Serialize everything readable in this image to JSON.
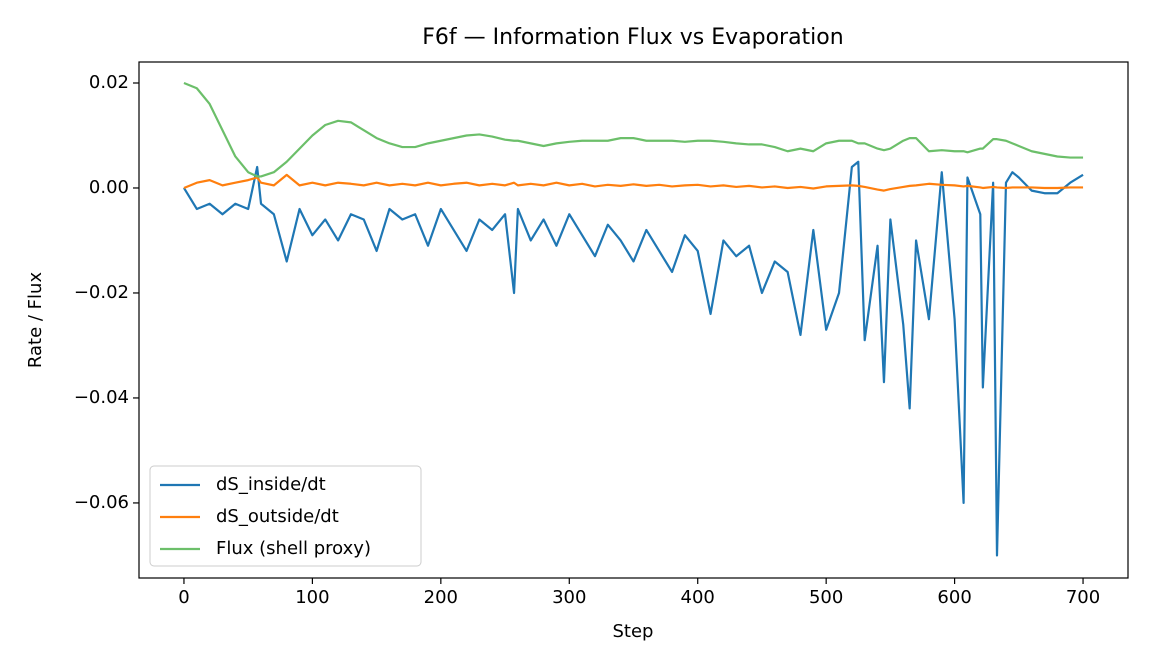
{
  "chart_data": {
    "type": "line",
    "title": "F6f — Information Flux vs Evaporation",
    "x_label": "Step",
    "y_label": "Rate / Flux",
    "x": [
      0,
      10,
      20,
      30,
      40,
      50,
      57,
      60,
      70,
      80,
      90,
      100,
      110,
      120,
      130,
      140,
      150,
      160,
      170,
      180,
      190,
      200,
      210,
      220,
      230,
      240,
      250,
      257,
      260,
      270,
      280,
      290,
      300,
      310,
      320,
      330,
      340,
      350,
      360,
      370,
      380,
      390,
      400,
      410,
      420,
      430,
      440,
      450,
      460,
      470,
      480,
      490,
      500,
      510,
      520,
      525,
      530,
      540,
      545,
      550,
      560,
      565,
      570,
      580,
      590,
      600,
      607,
      610,
      620,
      622,
      630,
      633,
      640,
      645,
      650,
      660,
      670,
      680,
      690,
      700
    ],
    "series": [
      {
        "name": "dS_inside/dt",
        "color": "#1f77b4",
        "values": [
          0,
          -0.004,
          -0.003,
          -0.005,
          -0.003,
          -0.004,
          0.004,
          -0.003,
          -0.005,
          -0.014,
          -0.004,
          -0.009,
          -0.006,
          -0.01,
          -0.005,
          -0.006,
          -0.012,
          -0.004,
          -0.006,
          -0.005,
          -0.011,
          -0.004,
          -0.008,
          -0.012,
          -0.006,
          -0.008,
          -0.005,
          -0.02,
          -0.004,
          -0.01,
          -0.006,
          -0.011,
          -0.005,
          -0.009,
          -0.013,
          -0.007,
          -0.01,
          -0.014,
          -0.008,
          -0.012,
          -0.016,
          -0.009,
          -0.012,
          -0.024,
          -0.01,
          -0.013,
          -0.011,
          -0.02,
          -0.014,
          -0.016,
          -0.028,
          -0.008,
          -0.027,
          -0.02,
          0.004,
          0.005,
          -0.029,
          -0.011,
          -0.037,
          -0.006,
          -0.026,
          -0.042,
          -0.01,
          -0.025,
          0.003,
          -0.025,
          -0.06,
          0.002,
          -0.005,
          -0.038,
          0.001,
          -0.07,
          0.001,
          0.003,
          0.002,
          -0.0005,
          -0.001,
          -0.001,
          0.001,
          0.0025
        ]
      },
      {
        "name": "dS_outside/dt",
        "color": "#ff7f0e",
        "values": [
          0,
          0.001,
          0.0015,
          0.0005,
          0.001,
          0.0015,
          0.002,
          0.001,
          0.0005,
          0.0025,
          0.0005,
          0.001,
          0.0005,
          0.001,
          0.0008,
          0.0005,
          0.001,
          0.0005,
          0.0008,
          0.0005,
          0.001,
          0.0005,
          0.0008,
          0.001,
          0.0005,
          0.0008,
          0.0005,
          0.001,
          0.0005,
          0.0008,
          0.0005,
          0.001,
          0.0005,
          0.0008,
          0.0003,
          0.0006,
          0.0004,
          0.0007,
          0.0004,
          0.0006,
          0.0003,
          0.0005,
          0.0006,
          0.0003,
          0.0005,
          0.0002,
          0.0004,
          0.0001,
          0.0003,
          0,
          0.0002,
          -0.0001,
          0.0003,
          0.0004,
          0.0005,
          0.0004,
          0.0002,
          -0.0003,
          -0.0005,
          -0.0002,
          0.0002,
          0.0004,
          0.0005,
          0.0008,
          0.0006,
          0.0005,
          0.0003,
          0.0004,
          0.0001,
          0,
          0.0002,
          0.0001,
          0,
          0.0001,
          0.0001,
          0.0001,
          0,
          0,
          0.0001,
          0.0001
        ]
      },
      {
        "name": "Flux (shell proxy)",
        "color": "#6cbf6a",
        "values": [
          0.02,
          0.019,
          0.016,
          0.011,
          0.006,
          0.003,
          0.0022,
          0.0022,
          0.003,
          0.005,
          0.0075,
          0.01,
          0.012,
          0.0128,
          0.0125,
          0.011,
          0.0095,
          0.0085,
          0.0078,
          0.0078,
          0.0085,
          0.009,
          0.0095,
          0.01,
          0.0102,
          0.0098,
          0.0092,
          0.009,
          0.009,
          0.0085,
          0.008,
          0.0085,
          0.0088,
          0.009,
          0.009,
          0.009,
          0.0095,
          0.0095,
          0.009,
          0.009,
          0.009,
          0.0088,
          0.009,
          0.009,
          0.0088,
          0.0085,
          0.0083,
          0.0083,
          0.0078,
          0.007,
          0.0075,
          0.007,
          0.0085,
          0.009,
          0.009,
          0.0085,
          0.0085,
          0.0075,
          0.0072,
          0.0075,
          0.009,
          0.0095,
          0.0095,
          0.007,
          0.0072,
          0.007,
          0.007,
          0.0068,
          0.0075,
          0.0075,
          0.0093,
          0.0093,
          0.009,
          0.0085,
          0.008,
          0.007,
          0.0065,
          0.006,
          0.0058,
          0.0058
        ]
      }
    ],
    "xlim": [
      -35,
      735
    ],
    "ylim": [
      -0.0743,
      0.024
    ],
    "xticks": [
      0,
      100,
      200,
      300,
      400,
      500,
      600,
      700
    ],
    "yticks": [
      {
        "value": -0.06,
        "label": "−0.06"
      },
      {
        "value": -0.04,
        "label": "−0.04"
      },
      {
        "value": -0.02,
        "label": "−0.02"
      },
      {
        "value": 0,
        "label": "0.00"
      },
      0.02
    ],
    "legend": "lower left",
    "grid": false
  }
}
